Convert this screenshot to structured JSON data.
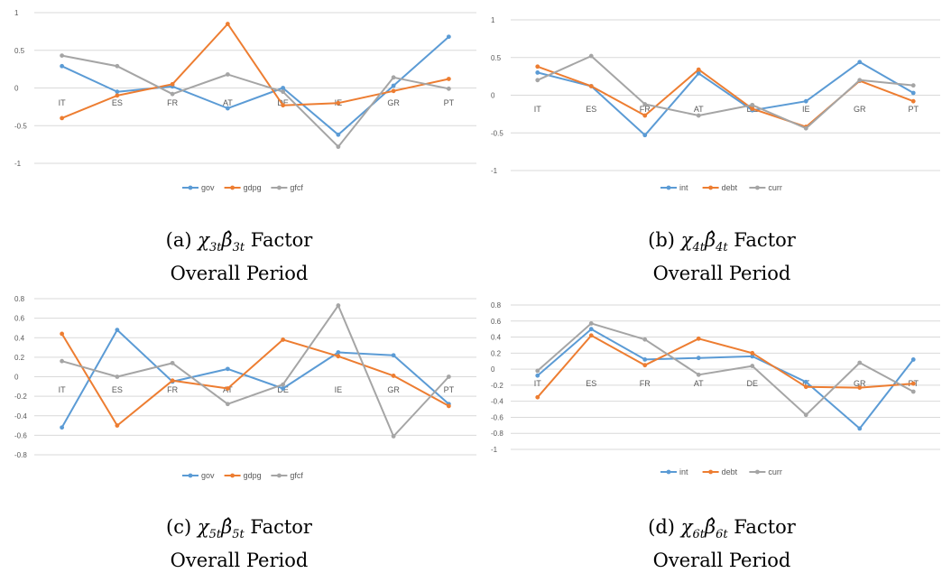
{
  "colors": [
    "#5b9bd5",
    "#ed7d31",
    "#a5a5a5"
  ],
  "chart_data": [
    {
      "type": "line",
      "categories": [
        "IT",
        "ES",
        "FR",
        "AT",
        "DE",
        "IE",
        "GR",
        "PT"
      ],
      "ylim": [
        -1,
        1
      ],
      "yticks": [
        "1",
        "0.5",
        "0",
        "-0.5",
        "-1"
      ],
      "grid": true,
      "legend": "bottom",
      "series": [
        {
          "name": "gov",
          "values": [
            0.29,
            -0.05,
            0.02,
            -0.27,
            0.0,
            -0.62,
            0.03,
            0.68
          ]
        },
        {
          "name": "gdpg",
          "values": [
            -0.4,
            -0.1,
            0.05,
            0.85,
            -0.23,
            -0.2,
            -0.04,
            0.12
          ]
        },
        {
          "name": "gfcf",
          "values": [
            0.43,
            0.29,
            -0.08,
            0.18,
            -0.05,
            -0.78,
            0.14,
            -0.01
          ]
        }
      ]
    },
    {
      "type": "line",
      "categories": [
        "IT",
        "ES",
        "FR",
        "AT",
        "DE",
        "IE",
        "GR",
        "PT"
      ],
      "ylim": [
        -1,
        1
      ],
      "yticks": [
        "1",
        "0.5",
        "0",
        "-0.5",
        "-1"
      ],
      "grid": true,
      "legend": "bottom",
      "series": [
        {
          "name": "int",
          "values": [
            0.3,
            0.12,
            -0.53,
            0.29,
            -0.2,
            -0.08,
            0.44,
            0.03
          ]
        },
        {
          "name": "debt",
          "values": [
            0.38,
            0.12,
            -0.27,
            0.34,
            -0.18,
            -0.42,
            0.19,
            -0.08
          ]
        },
        {
          "name": "curr",
          "values": [
            0.2,
            0.52,
            -0.12,
            -0.27,
            -0.13,
            -0.44,
            0.2,
            0.13
          ]
        }
      ]
    },
    {
      "type": "line",
      "categories": [
        "IT",
        "ES",
        "FR",
        "AT",
        "DE",
        "IE",
        "GR",
        "PT"
      ],
      "ylim": [
        -0.8,
        0.8
      ],
      "yticks": [
        "0.8",
        "0.6",
        "0.4",
        "0.2",
        "0",
        "-0.2",
        "-0.4",
        "-0.6",
        "-0.8"
      ],
      "grid": true,
      "legend": "bottom",
      "series": [
        {
          "name": "gov",
          "values": [
            -0.52,
            0.48,
            -0.05,
            0.08,
            -0.12,
            0.25,
            0.22,
            -0.28
          ]
        },
        {
          "name": "gdpg",
          "values": [
            0.44,
            -0.5,
            -0.04,
            -0.12,
            0.38,
            0.21,
            0.01,
            -0.3
          ]
        },
        {
          "name": "gfcf",
          "values": [
            0.16,
            0.0,
            0.14,
            -0.28,
            -0.08,
            0.73,
            -0.61,
            0.0
          ]
        }
      ]
    },
    {
      "type": "line",
      "categories": [
        "IT",
        "ES",
        "FR",
        "AT",
        "DE",
        "IE",
        "GR",
        "PT"
      ],
      "ylim": [
        -1,
        0.8
      ],
      "yticks": [
        "0.8",
        "0.6",
        "0.4",
        "0.2",
        "0",
        "-0.2",
        "-0.4",
        "-0.6",
        "-0.8",
        "-1"
      ],
      "grid": true,
      "legend": "bottom",
      "series": [
        {
          "name": "int",
          "values": [
            -0.08,
            0.5,
            0.12,
            0.14,
            0.16,
            -0.16,
            -0.74,
            0.12
          ]
        },
        {
          "name": "debt",
          "values": [
            -0.35,
            0.42,
            0.05,
            0.38,
            0.2,
            -0.22,
            -0.23,
            -0.18
          ]
        },
        {
          "name": "curr",
          "values": [
            -0.02,
            0.57,
            0.37,
            -0.07,
            0.04,
            -0.57,
            0.08,
            -0.28
          ]
        }
      ]
    }
  ],
  "captions": [
    {
      "label": "(a)",
      "math_base": "χ",
      "math_sub": "3t",
      "beta_sub": "3t",
      "word": "Factor",
      "line2": "Overall Period"
    },
    {
      "label": "(b)",
      "math_base": "χ",
      "math_sub": "4t",
      "beta_sub": "4t",
      "word": "Factor",
      "line2": "Overall Period"
    },
    {
      "label": "(c)",
      "math_base": "χ",
      "math_sub": "5t",
      "beta_sub": "5t",
      "word": "Factor",
      "line2": "Overall Period"
    },
    {
      "label": "(d)",
      "math_base": "χ",
      "math_sub": "6t",
      "beta_sub": "6t",
      "word": "Factor",
      "line2": "Overall Period"
    }
  ]
}
